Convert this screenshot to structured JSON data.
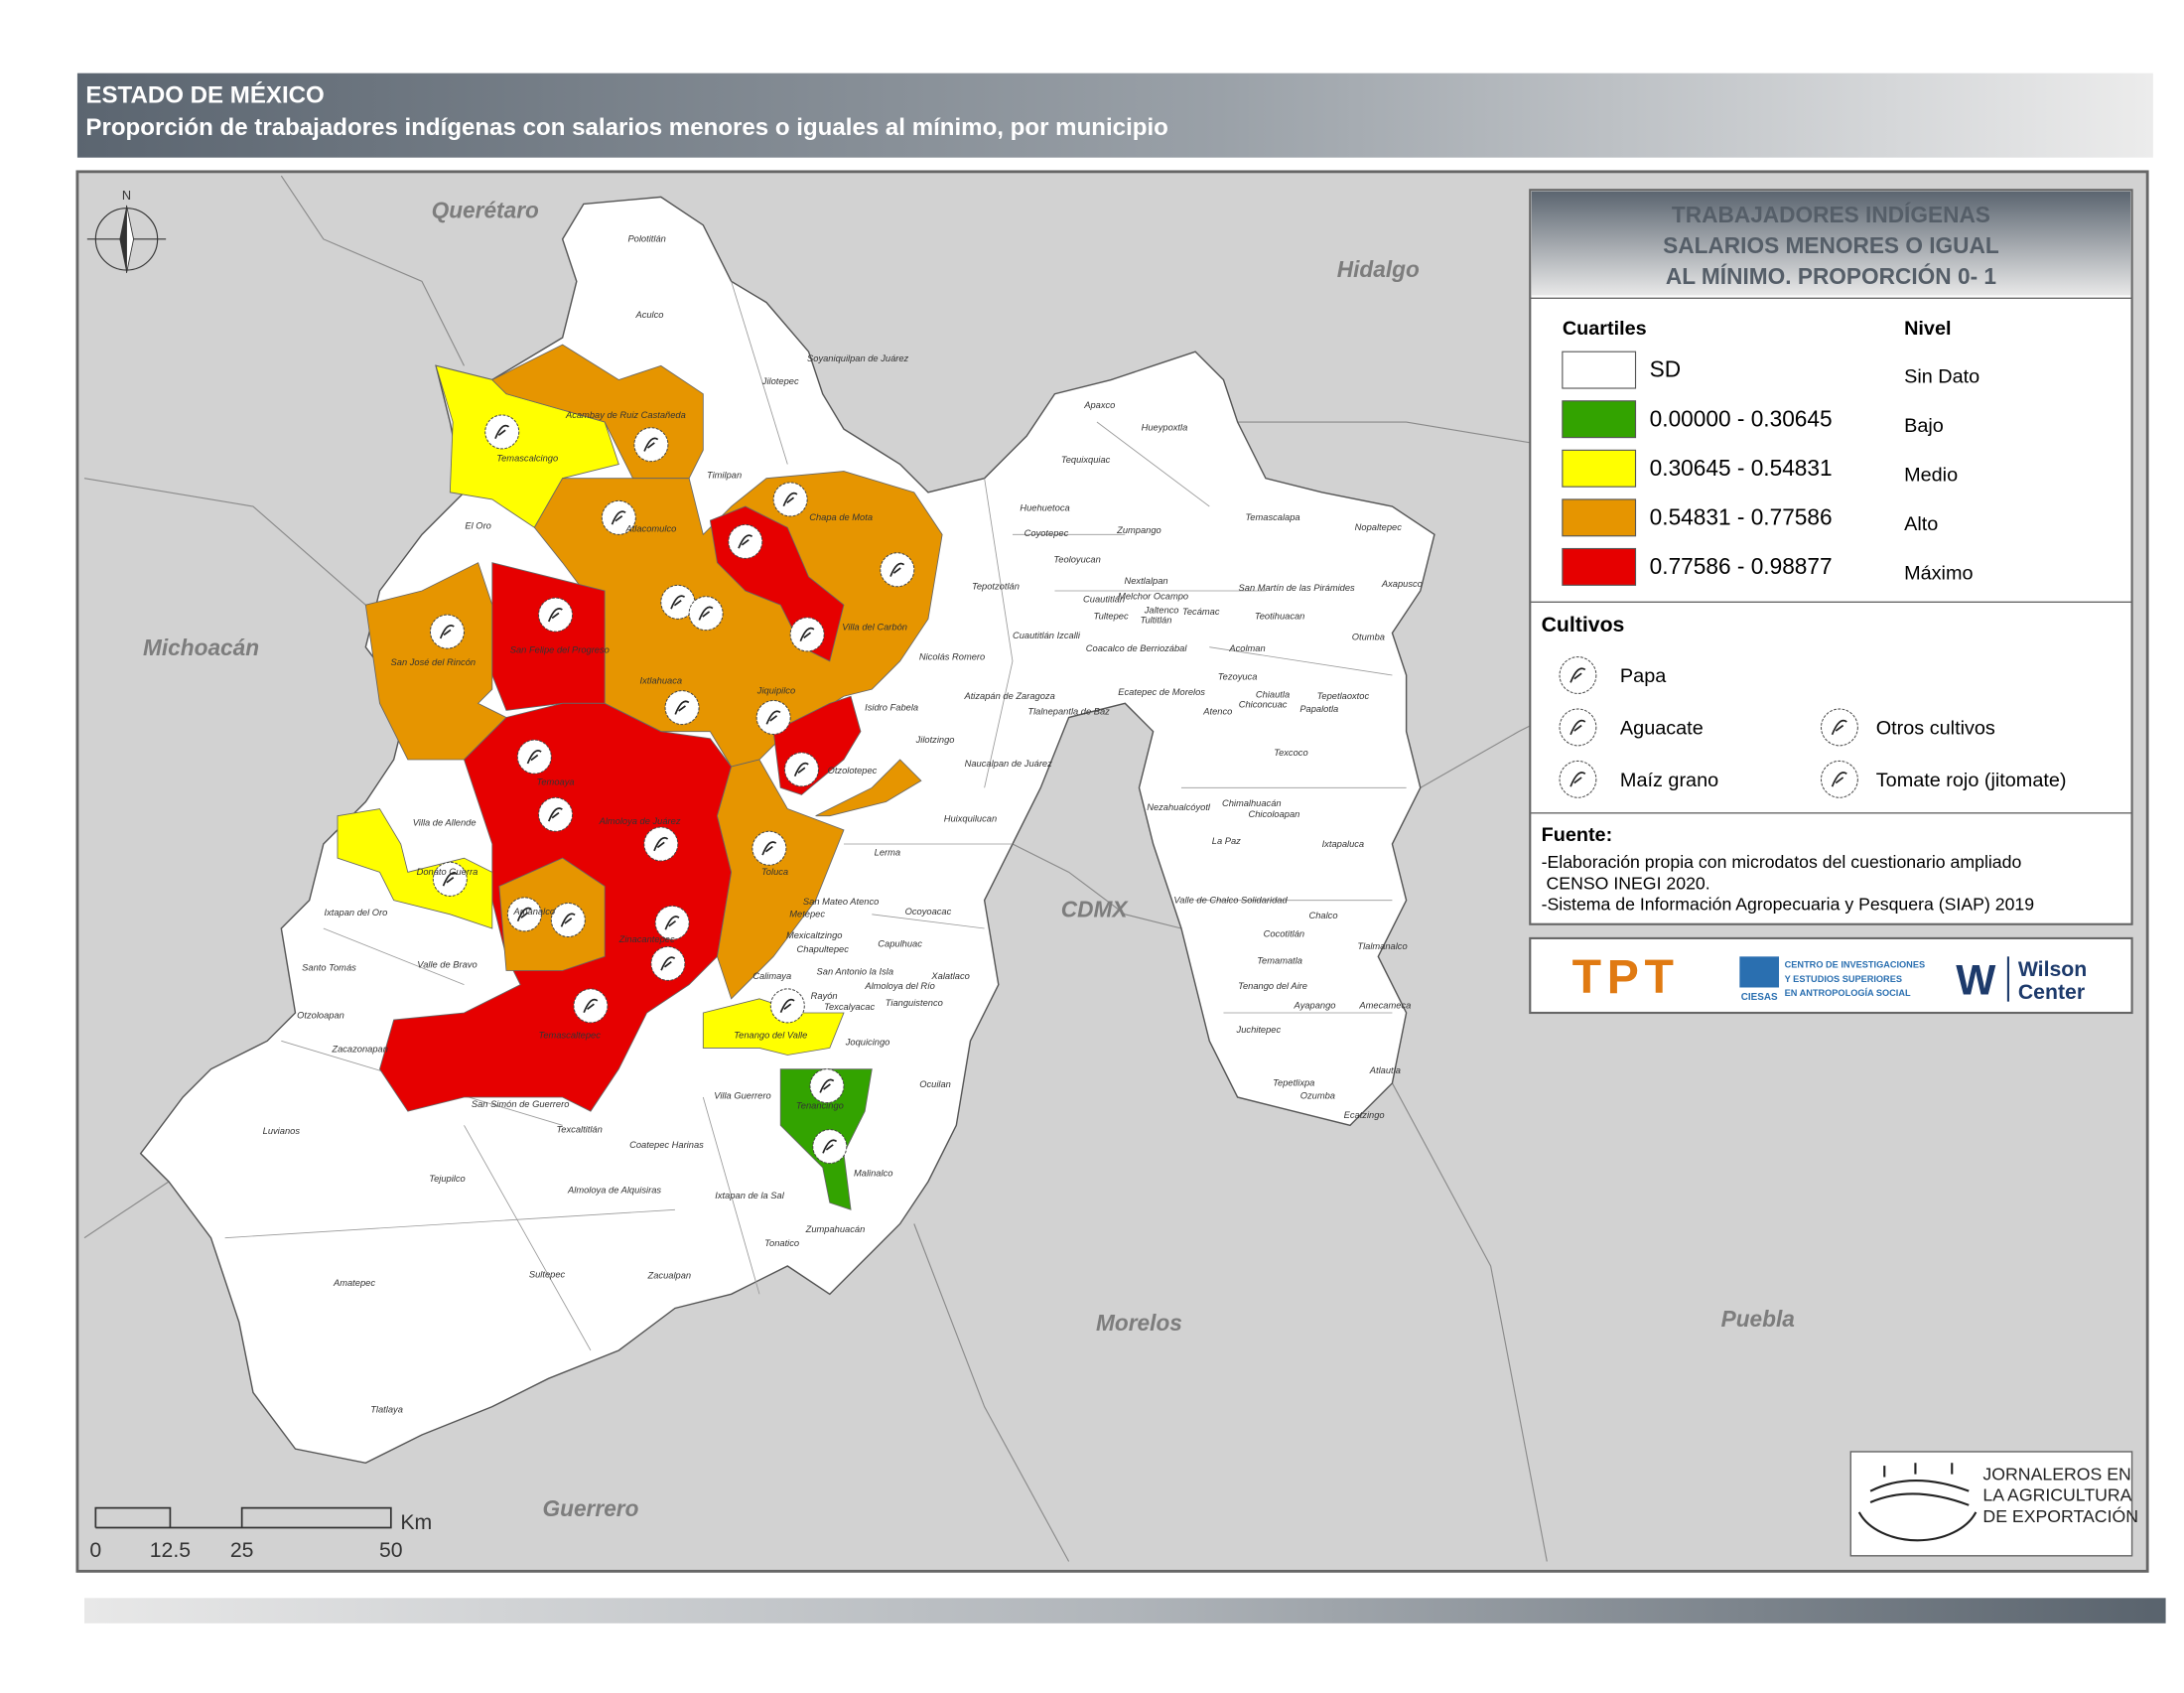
{
  "header": {
    "title": "ESTADO DE MÉXICO",
    "subtitle": "Proporción de trabajadores indígenas con salarios menores o iguales al mínimo, por municipio"
  },
  "map": {
    "north": "N",
    "neighbors": [
      "Querétaro",
      "Hidalgo",
      "Michoacán",
      "CDMX",
      "Morelos",
      "Puebla",
      "Guerrero"
    ],
    "municipalities": [
      "Polotitlán",
      "Aculco",
      "Soyaniquilpan de Juárez",
      "Jilotepec",
      "Acambay de Ruiz Castañeda",
      "Temascalcingo",
      "Timilpan",
      "El Oro",
      "Atlacomulco",
      "Chapa de Mota",
      "Villa del Carbón",
      "San José del Rincón",
      "San Felipe del Progreso",
      "Ixtlahuaca",
      "Jiquipilco",
      "Nicolás Romero",
      "Isidro Fabela",
      "Jilotzingo",
      "Otzolotepec",
      "Temoaya",
      "Villa de Allende",
      "Lerma",
      "Almoloya de Juárez",
      "Toluca",
      "Donato Guerra",
      "Amanalco",
      "Ixtapan del Oro",
      "Santo Tomás",
      "Valle de Bravo",
      "Otzoloapan",
      "Zacazonapan",
      "Temascaltepec",
      "Zinacantepec",
      "Metepec",
      "San Mateo Atenco",
      "Ocoyoacac",
      "Mexicaltzingo",
      "Capulhuac",
      "Chapultepec",
      "Xalatlaco",
      "Calimaya",
      "San Antonio la Isla",
      "Almoloya del Río",
      "Rayón",
      "Texcalyacac",
      "Tianguistenco",
      "Tenango del Valle",
      "Joquicingo",
      "Villa Guerrero",
      "Ocuilan",
      "Tenancingo",
      "San Simón de Guerrero",
      "Texcaltitlán",
      "Coatepec Harinas",
      "Luvianos",
      "Tejupilco",
      "Almoloya de Alquisiras",
      "Ixtapan de la Sal",
      "Malinalco",
      "Zumpahuacán",
      "Tonatico",
      "Sultepec",
      "Zacualpan",
      "Amatepec",
      "Tlatlaya",
      "Apaxco",
      "Hueypoxtla",
      "Tequixquiac",
      "Huehuetoca",
      "Coyotepec",
      "Zumpango",
      "Teoloyucan",
      "Tepotzotlán",
      "Melchor Ocampo",
      "Cuautitlán",
      "Nextlalpan",
      "Jaltenco",
      "Tecámac",
      "Tultitlán",
      "Tultepec",
      "Cuautitlán Izcalli",
      "Coacalco de Berriozábal",
      "Atizapán de Zaragoza",
      "Tlalnepantla de Baz",
      "Ecatepec de Morelos",
      "Acolman",
      "Teotihuacan",
      "San Martín de las Pirámides",
      "Temascalapa",
      "Nopaltepec",
      "Axapusco",
      "Otumba",
      "Tezoyuca",
      "Chiautla",
      "Chiconcuac",
      "Atenco",
      "Tepetlaoxtoc",
      "Papalotla",
      "Texcoco",
      "Naucalpan de Juárez",
      "Huixquilucan",
      "Nezahualcóyotl",
      "Chimalhuacán",
      "Chicoloapan",
      "La Paz",
      "Ixtapaluca",
      "Valle de Chalco Solidaridad",
      "Chalco",
      "Cocotitlán",
      "Tlalmanalco",
      "Temamatla",
      "Tenango del Aire",
      "Ayapango",
      "Amecameca",
      "Juchitepec",
      "Atlautla",
      "Tepetlixpa",
      "Ozumba",
      "Ecatzingo"
    ],
    "scale": {
      "ticks": [
        "0",
        "12.5",
        "25",
        "50"
      ],
      "unit": "Km"
    }
  },
  "legend": {
    "title": [
      "TRABAJADORES INDÍGENAS",
      "SALARIOS MENORES O IGUAL",
      "AL MÍNIMO. PROPORCIÓN 0- 1"
    ],
    "cuartiles_label": "Cuartiles",
    "nivel_label": "Nivel",
    "classes": [
      {
        "range": "SD",
        "nivel": "Sin Dato",
        "color": "#ffffff"
      },
      {
        "range": "0.00000 - 0.30645",
        "nivel": "Bajo",
        "color": "#33a300"
      },
      {
        "range": "0.30645 - 0.54831",
        "nivel": "Medio",
        "color": "#ffff00"
      },
      {
        "range": "0.54831 - 0.77586",
        "nivel": "Alto",
        "color": "#e69500"
      },
      {
        "range": "0.77586 - 0.98877",
        "nivel": "Máximo",
        "color": "#e60000"
      }
    ],
    "cultivos_label": "Cultivos",
    "cultivos": [
      "Papa",
      "Aguacate",
      "Maíz grano",
      "Otros cultivos",
      "Tomate rojo (jitomate)"
    ]
  },
  "source": {
    "label": "Fuente:",
    "lines": [
      "-Elaboración propia con microdatos del cuestionario ampliado",
      " CENSO INEGI 2020.",
      "-Sistema de Información Agropecuaria y Pesquera (SIAP) 2019"
    ]
  },
  "logos": {
    "tpt": "TPT",
    "ciesas": [
      "CENTRO DE INVESTIGACIONES",
      "Y ESTUDIOS SUPERIORES",
      "EN ANTROPOLOGÍA SOCIAL"
    ],
    "ciesas_short": "CIESAS",
    "wilson_mark": "W",
    "wilson": [
      "Wilson",
      "Center"
    ],
    "jornaleros": [
      "JORNALEROS EN",
      "LA AGRICULTURA",
      "DE EXPORTACIÓN"
    ]
  }
}
